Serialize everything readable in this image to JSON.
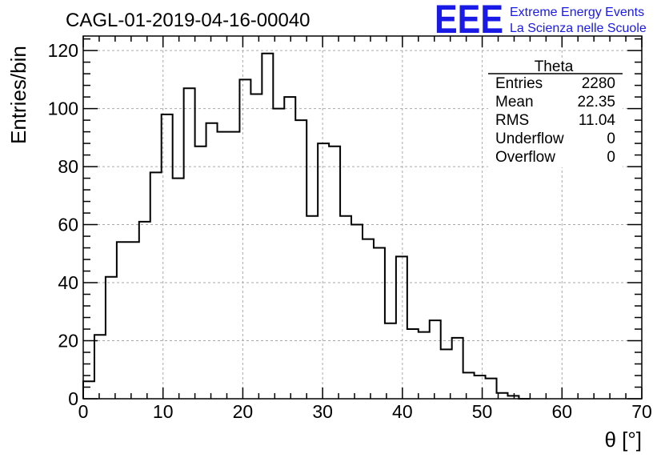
{
  "chart_data": {
    "type": "bar",
    "title": "CAGL-01-2019-04-16-00040",
    "xlabel": "θ [°]",
    "ylabel": "Entries/bin",
    "xlim": [
      0,
      70
    ],
    "ylim": [
      0,
      125
    ],
    "bin_width": 1.4,
    "x_ticks": [
      0,
      10,
      20,
      30,
      40,
      50,
      60,
      70
    ],
    "y_ticks": [
      0,
      20,
      40,
      60,
      80,
      100,
      120
    ],
    "grid": true,
    "values": [
      6,
      22,
      42,
      54,
      54,
      61,
      78,
      98,
      76,
      107,
      87,
      95,
      92,
      92,
      110,
      105,
      119,
      100,
      104,
      96,
      63,
      88,
      87,
      63,
      60,
      55,
      52,
      26,
      49,
      24,
      23,
      27,
      17,
      21,
      9,
      8,
      7,
      2,
      1,
      0
    ]
  },
  "stats": {
    "name": "Theta",
    "rows": [
      {
        "label": "Entries",
        "value": "2280"
      },
      {
        "label": "Mean",
        "value": "22.35"
      },
      {
        "label": "RMS",
        "value": "11.04"
      },
      {
        "label": "Underflow",
        "value": "0"
      },
      {
        "label": "Overflow",
        "value": "0"
      }
    ]
  },
  "logo": {
    "mark": "EEE",
    "line1": "Extreme Energy Events",
    "line2": "La Scienza nelle Scuole",
    "color": "#1a1ae6"
  }
}
